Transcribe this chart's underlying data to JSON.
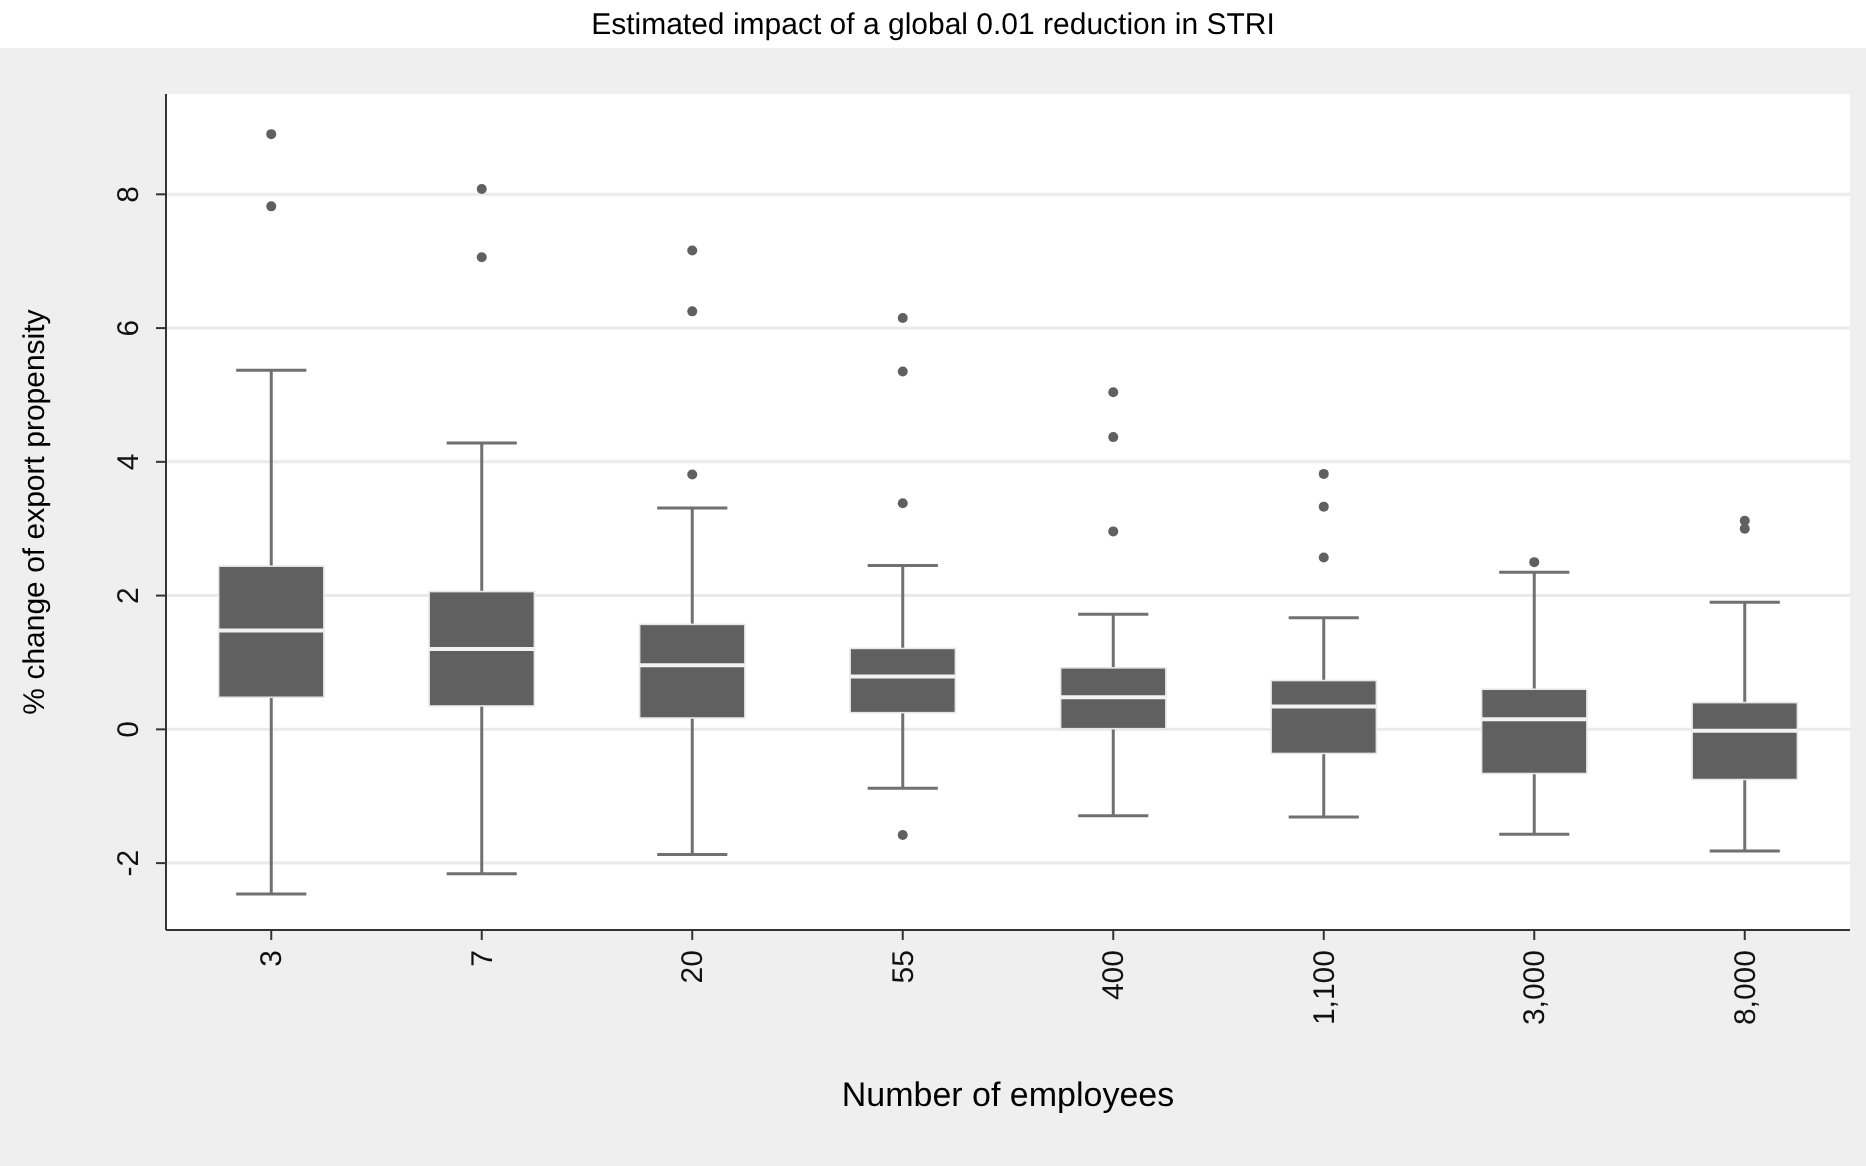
{
  "chart_data": {
    "type": "box",
    "title": "Estimated impact of a global 0.01 reduction in STRI",
    "xlabel": "Number of employees",
    "ylabel": "% change of export propensity",
    "categories": [
      "3",
      "7",
      "20",
      "55",
      "400",
      "1,100",
      "3,000",
      "8,000"
    ],
    "color": "#606060",
    "boxes": [
      {
        "low": -2.46,
        "q1": 0.48,
        "median": 1.48,
        "q3": 2.44,
        "high": 5.37,
        "outliers": [
          8.9,
          7.82
        ]
      },
      {
        "low": -2.16,
        "q1": 0.35,
        "median": 1.2,
        "q3": 2.06,
        "high": 4.28,
        "outliers": [
          8.08,
          7.06
        ]
      },
      {
        "low": -1.87,
        "q1": 0.17,
        "median": 0.96,
        "q3": 1.57,
        "high": 3.31,
        "outliers": [
          7.16,
          6.25,
          3.81
        ]
      },
      {
        "low": -0.88,
        "q1": 0.25,
        "median": 0.79,
        "q3": 1.21,
        "high": 2.45,
        "outliers": [
          6.15,
          5.35,
          3.38,
          -1.58
        ]
      },
      {
        "low": -1.29,
        "q1": 0.01,
        "median": 0.48,
        "q3": 0.92,
        "high": 1.72,
        "outliers": [
          5.04,
          4.37,
          2.96
        ]
      },
      {
        "low": -1.31,
        "q1": -0.36,
        "median": 0.34,
        "q3": 0.73,
        "high": 1.67,
        "outliers": [
          3.82,
          3.33,
          2.57
        ]
      },
      {
        "low": -1.57,
        "q1": -0.66,
        "median": 0.15,
        "q3": 0.6,
        "high": 2.35,
        "outliers": [
          2.5
        ]
      },
      {
        "low": -1.82,
        "q1": -0.75,
        "median": -0.02,
        "q3": 0.4,
        "high": 1.9,
        "outliers": [
          3.12,
          3.0
        ]
      }
    ],
    "ylim": [
      -3,
      9.5
    ],
    "yticks": [
      -2,
      0,
      2,
      4,
      6,
      8
    ],
    "grid": "y"
  }
}
